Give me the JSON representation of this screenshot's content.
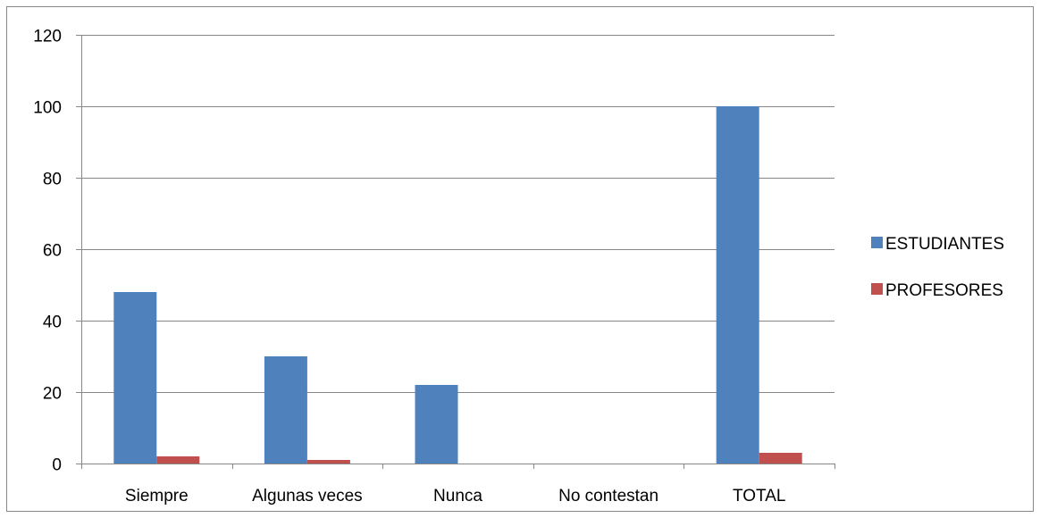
{
  "chart_data": {
    "type": "bar",
    "categories": [
      "Siempre",
      "Algunas veces",
      "Nunca",
      "No contestan",
      "TOTAL"
    ],
    "series": [
      {
        "name": "ESTUDIANTES",
        "color": "#4F81BD",
        "values": [
          48,
          30,
          22,
          0,
          100
        ]
      },
      {
        "name": "PROFESORES",
        "color": "#C0504D",
        "values": [
          2,
          1,
          0,
          0,
          3
        ]
      }
    ],
    "title": "",
    "xlabel": "",
    "ylabel": "",
    "ylim": [
      0,
      120
    ],
    "yticks": [
      0,
      20,
      40,
      60,
      80,
      100,
      120
    ],
    "grid": true,
    "legend_position": "right"
  }
}
